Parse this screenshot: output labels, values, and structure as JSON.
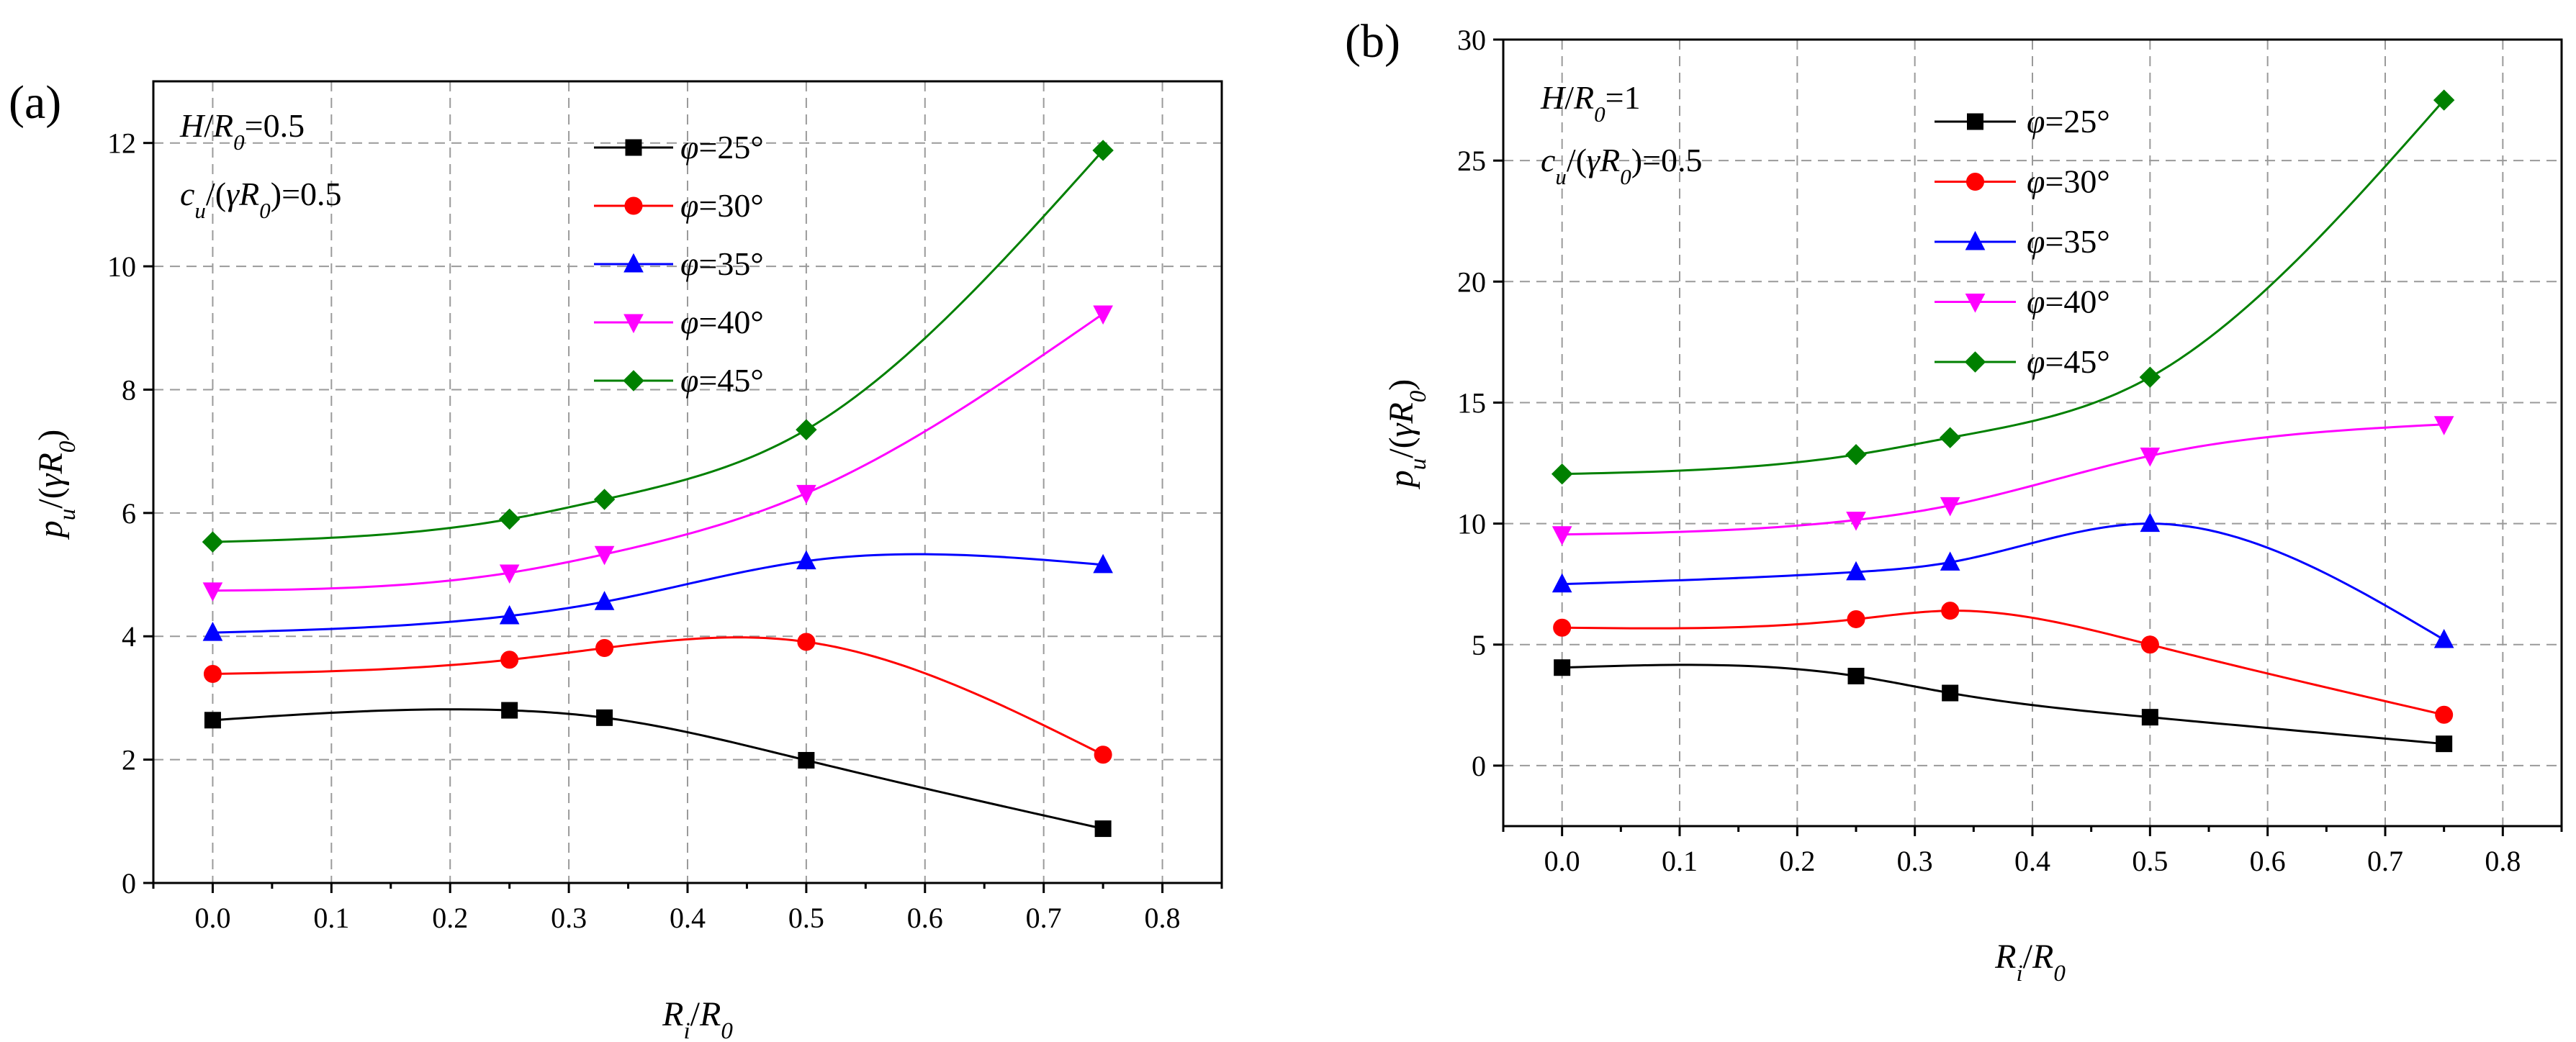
{
  "chart_data": [
    {
      "type": "line",
      "panel_label": "(a)",
      "annotations": [
        "H/R₀=0.5",
        "cᵤ/(γR₀)=0.5"
      ],
      "xlabel": "Rᵢ/R₀",
      "ylabel": "pᵤ/(γR₀)",
      "xlim": [
        -0.05,
        0.85
      ],
      "ylim": [
        0,
        13
      ],
      "xticks": [
        0.0,
        0.1,
        0.2,
        0.3,
        0.4,
        0.5,
        0.6,
        0.7,
        0.8
      ],
      "xtick_labels": [
        "0.0",
        "0.1",
        "0.2",
        "0.3",
        "0.4",
        "0.5",
        "0.6",
        "0.7",
        "0.8"
      ],
      "yticks": [
        0,
        2,
        4,
        6,
        8,
        10,
        12
      ],
      "ytick_labels": [
        "0",
        "2",
        "4",
        "6",
        "8",
        "10",
        "12"
      ],
      "grid": true,
      "legend_position": "top-right",
      "x": [
        0.0,
        0.25,
        0.33,
        0.5,
        0.75
      ],
      "series": [
        {
          "name": "φ=25°",
          "color": "#000000",
          "marker": "square",
          "values": [
            2.64,
            2.8,
            2.68,
            1.99,
            0.88
          ]
        },
        {
          "name": "φ=30°",
          "color": "#ff0000",
          "marker": "circle",
          "values": [
            3.39,
            3.62,
            3.81,
            3.91,
            2.08
          ]
        },
        {
          "name": "φ=35°",
          "color": "#0000ff",
          "marker": "triangle-up",
          "values": [
            4.06,
            4.33,
            4.56,
            5.22,
            5.16
          ]
        },
        {
          "name": "φ=40°",
          "color": "#ff00ff",
          "marker": "triangle-down",
          "values": [
            4.74,
            5.03,
            5.33,
            6.32,
            9.23
          ]
        },
        {
          "name": "φ=45°",
          "color": "#008000",
          "marker": "diamond",
          "values": [
            5.53,
            5.9,
            6.22,
            7.35,
            11.88
          ]
        }
      ]
    },
    {
      "type": "line",
      "panel_label": "(b)",
      "annotations": [
        "H/R₀=1",
        "cᵤ/(γR₀)=0.5"
      ],
      "xlabel": "Rᵢ/R₀",
      "ylabel": "pᵤ/(γR₀)",
      "xlim": [
        -0.05,
        0.85
      ],
      "ylim": [
        -2.5,
        30
      ],
      "xticks": [
        0.0,
        0.1,
        0.2,
        0.3,
        0.4,
        0.5,
        0.6,
        0.7,
        0.8
      ],
      "xtick_labels": [
        "0.0",
        "0.1",
        "0.2",
        "0.3",
        "0.4",
        "0.5",
        "0.6",
        "0.7",
        "0.8"
      ],
      "yticks": [
        0,
        5,
        10,
        15,
        20,
        25,
        30
      ],
      "ytick_labels": [
        "0",
        "5",
        "10",
        "15",
        "20",
        "25",
        "30"
      ],
      "grid": true,
      "legend_position": "top-right",
      "x": [
        0.0,
        0.25,
        0.33,
        0.5,
        0.75
      ],
      "series": [
        {
          "name": "φ=25°",
          "color": "#000000",
          "marker": "square",
          "values": [
            4.05,
            3.7,
            3.0,
            2.0,
            0.9
          ]
        },
        {
          "name": "φ=30°",
          "color": "#ff0000",
          "marker": "circle",
          "values": [
            5.7,
            6.05,
            6.4,
            5.0,
            2.1
          ]
        },
        {
          "name": "φ=35°",
          "color": "#0000ff",
          "marker": "triangle-up",
          "values": [
            7.5,
            8.0,
            8.4,
            10.0,
            5.2
          ]
        },
        {
          "name": "φ=40°",
          "color": "#ff00ff",
          "marker": "triangle-down",
          "values": [
            9.55,
            10.15,
            10.75,
            12.8,
            14.1
          ]
        },
        {
          "name": "φ=45°",
          "color": "#008000",
          "marker": "diamond",
          "values": [
            12.05,
            12.85,
            13.55,
            16.05,
            27.5
          ]
        }
      ]
    }
  ]
}
